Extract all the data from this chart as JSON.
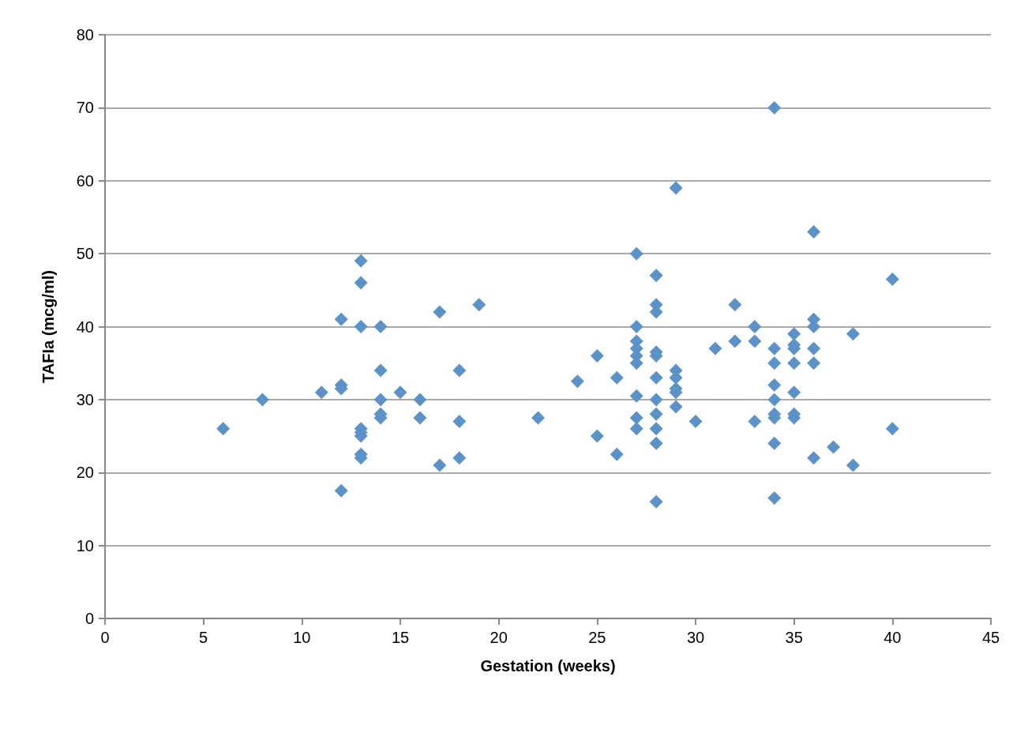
{
  "chart_data": {
    "type": "scatter",
    "xlabel": "Gestation (weeks)",
    "ylabel": "TAFIa (mcg/ml)",
    "x": [
      6,
      8,
      11,
      12,
      12,
      12,
      12,
      13,
      13,
      13,
      13,
      13,
      13,
      13,
      13,
      14,
      14,
      14,
      14,
      14,
      15,
      16,
      16,
      17,
      17,
      18,
      18,
      18,
      19,
      22,
      24,
      25,
      25,
      26,
      26,
      27,
      27,
      27,
      27,
      27,
      27,
      27,
      27,
      27,
      28,
      28,
      28,
      28,
      28,
      28,
      28,
      28,
      28,
      28,
      28,
      29,
      29,
      29,
      29,
      29,
      29,
      30,
      31,
      32,
      32,
      33,
      33,
      33,
      34,
      34,
      34,
      34,
      34,
      34,
      34,
      34,
      34,
      35,
      35,
      35,
      35,
      35,
      35,
      35,
      36,
      36,
      36,
      36,
      36,
      36,
      37,
      38,
      38,
      40,
      40
    ],
    "series": [
      {
        "color": "#5b93c9",
        "values": [
          26,
          30,
          31,
          41,
          32,
          31.5,
          17.5,
          49,
          46,
          40,
          26,
          25.5,
          25,
          22.5,
          22,
          40,
          34,
          30,
          28,
          27.5,
          31,
          30,
          27.5,
          42,
          21,
          34,
          27,
          22,
          43,
          27.5,
          32.5,
          36,
          25,
          33,
          22.5,
          50,
          40,
          38,
          37,
          36,
          35,
          30.5,
          27.5,
          26,
          47,
          43,
          42,
          36.5,
          36,
          33,
          30,
          28,
          26,
          24,
          16,
          59,
          34,
          33,
          31.5,
          31,
          29,
          27,
          37,
          43,
          38,
          40,
          38,
          27,
          70,
          37,
          35,
          32,
          30,
          28,
          27.5,
          24,
          16.5,
          39,
          37.5,
          37,
          35,
          31,
          28,
          27.5,
          53,
          41,
          40,
          37,
          35,
          22,
          23.5,
          39,
          21,
          46.5,
          26
        ]
      }
    ],
    "xlim": [
      0,
      45
    ],
    "xticks": [
      0,
      5,
      10,
      15,
      20,
      25,
      30,
      35,
      40,
      45
    ],
    "ylim": [
      0,
      80
    ],
    "yticks": [
      0,
      10,
      20,
      30,
      40,
      50,
      60,
      70,
      80
    ],
    "grid": "y",
    "marker": "diamond"
  }
}
